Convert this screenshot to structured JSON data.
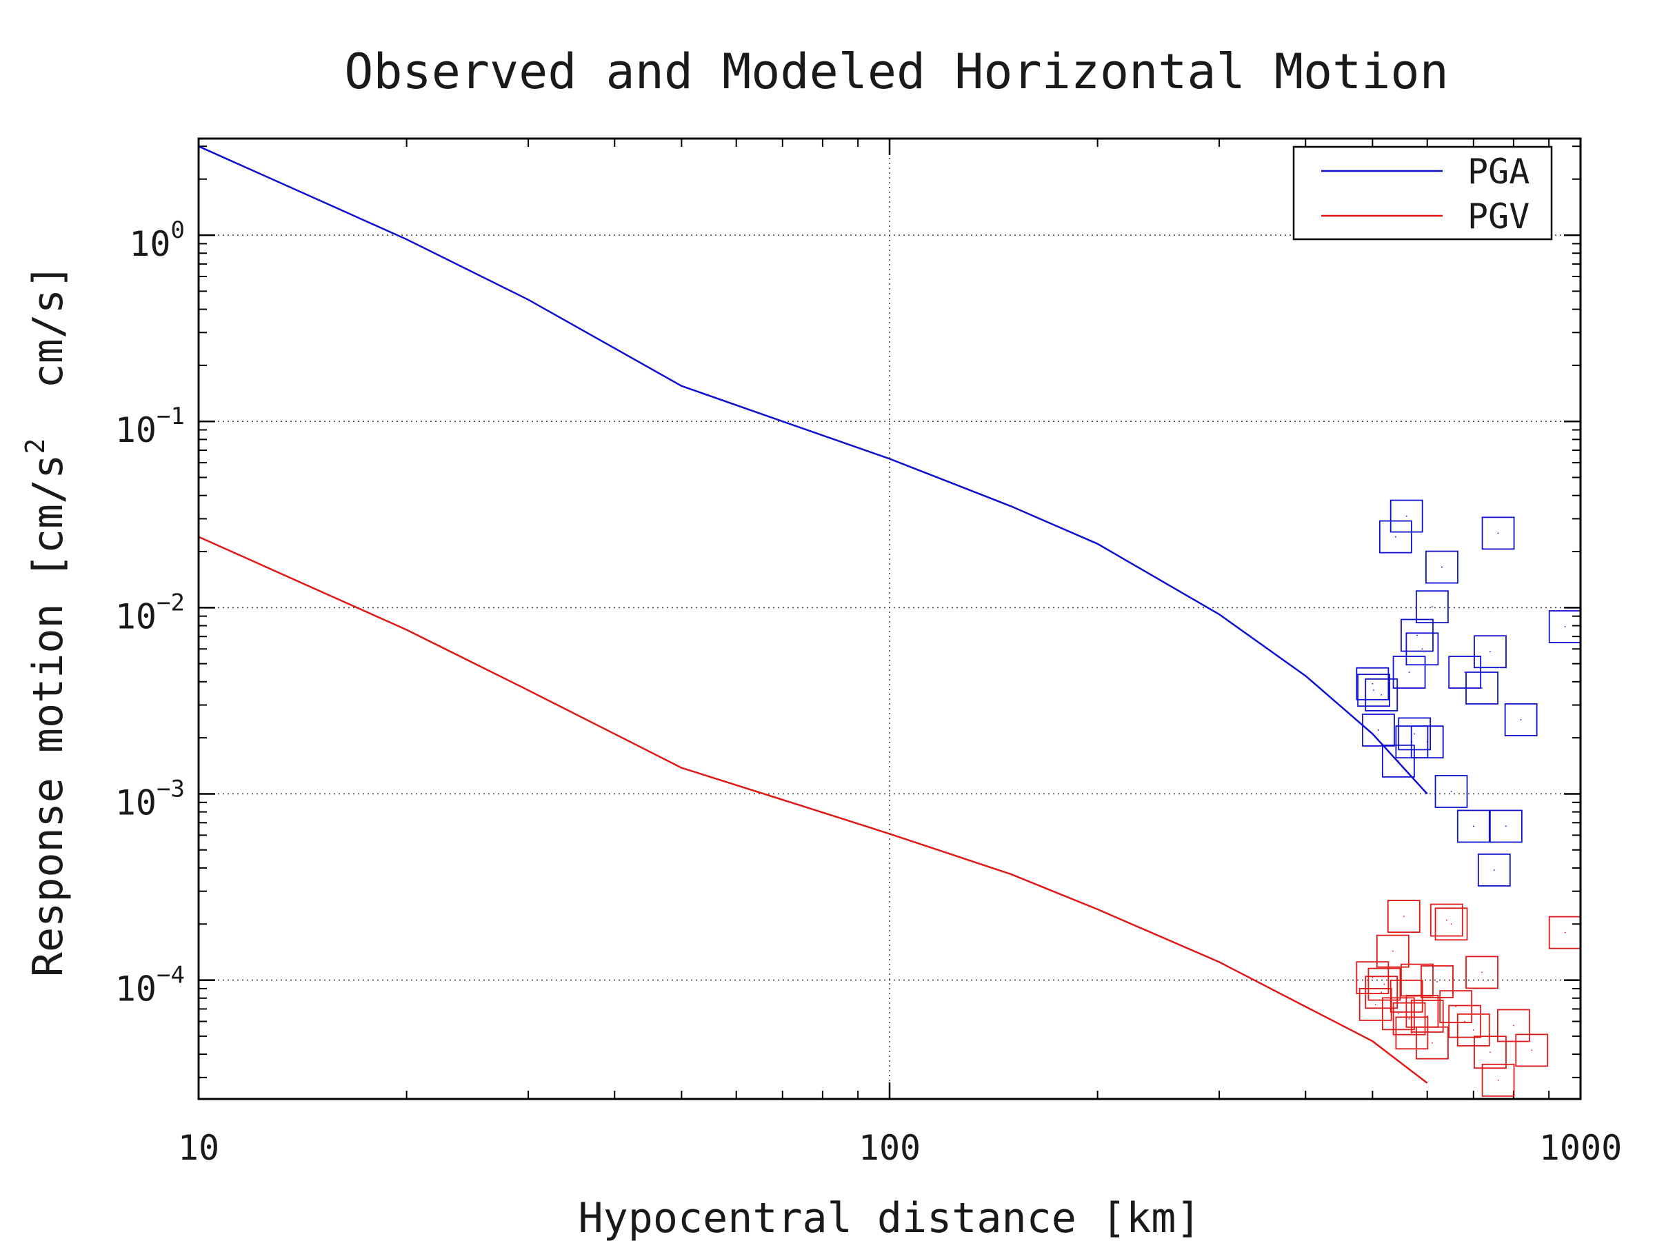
{
  "chart_data": {
    "type": "line",
    "title": "Observed and Modeled Horizontal Motion",
    "xlabel": "Hypocentral distance [km]",
    "ylabel_parts": [
      "Response motion [cm/s",
      "2",
      "  cm/s]"
    ],
    "xscale": "log",
    "yscale": "log",
    "xlim": [
      10,
      1000
    ],
    "ylim": [
      2.3e-05,
      3.3
    ],
    "x_ticks": [
      {
        "value": 10,
        "label": "10"
      },
      {
        "value": 100,
        "label": "100"
      },
      {
        "value": 1000,
        "label": "1000"
      }
    ],
    "y_ticks": [
      {
        "value": 1,
        "base": "10",
        "exp": "0"
      },
      {
        "value": 0.1,
        "base": "10",
        "exp": "−1"
      },
      {
        "value": 0.01,
        "base": "10",
        "exp": "−2"
      },
      {
        "value": 0.001,
        "base": "10",
        "exp": "−3"
      },
      {
        "value": 0.0001,
        "base": "10",
        "exp": "−4"
      }
    ],
    "grid": "dotted",
    "legend_position": "top-right",
    "series": [
      {
        "name": "PGA",
        "color": "#1010d0",
        "kind": "line",
        "x": [
          10,
          20,
          30,
          50,
          70,
          100,
          150,
          200,
          300,
          400,
          500,
          600
        ],
        "y": [
          3.0,
          0.95,
          0.45,
          0.155,
          0.1,
          0.063,
          0.035,
          0.022,
          0.0092,
          0.0043,
          0.0021,
          0.001
        ]
      },
      {
        "name": "PGV",
        "color": "#e01818",
        "kind": "line",
        "x": [
          10,
          20,
          30,
          50,
          70,
          100,
          150,
          200,
          300,
          400,
          500,
          600
        ],
        "y": [
          0.024,
          0.0076,
          0.0036,
          0.00138,
          0.00093,
          0.00061,
          0.00037,
          0.00024,
          0.000125,
          7.2e-05,
          4.7e-05,
          2.8e-05
        ]
      },
      {
        "name": "",
        "color": "#1010d0",
        "kind": "markers",
        "x": [
          500,
          502,
          515,
          510,
          540,
          560,
          545,
          565,
          570,
          575,
          580,
          590,
          600,
          610,
          630,
          650,
          680,
          700,
          720,
          740,
          750,
          760,
          780,
          820,
          950
        ],
        "y": [
          0.0039,
          0.0036,
          0.0034,
          0.0022,
          0.024,
          0.031,
          0.0015,
          0.0045,
          0.0019,
          0.0021,
          0.0071,
          0.006,
          0.0019,
          0.0101,
          0.0165,
          0.00103,
          0.0045,
          0.00067,
          0.0037,
          0.0058,
          0.00039,
          0.0251,
          0.00067,
          0.0025,
          0.0079
        ]
      },
      {
        "name": "",
        "color": "#e01818",
        "kind": "markers",
        "x": [
          500,
          505,
          515,
          520,
          535,
          545,
          555,
          560,
          565,
          570,
          580,
          590,
          600,
          610,
          620,
          640,
          650,
          660,
          680,
          700,
          720,
          740,
          760,
          800,
          850,
          950
        ],
        "y": [
          0.000103,
          7.4e-05,
          8.6e-05,
          9.5e-05,
          0.000143,
          6.6e-05,
          0.00022,
          8.2e-05,
          6.2e-05,
          5.2e-05,
          0.0001,
          6.8e-05,
          6.4e-05,
          4.6e-05,
          9.8e-05,
          0.00021,
          0.0002,
          7.2e-05,
          6e-05,
          5.4e-05,
          0.00011,
          4.1e-05,
          2.9e-05,
          5.7e-05,
          4.2e-05,
          0.00018
        ]
      }
    ]
  }
}
